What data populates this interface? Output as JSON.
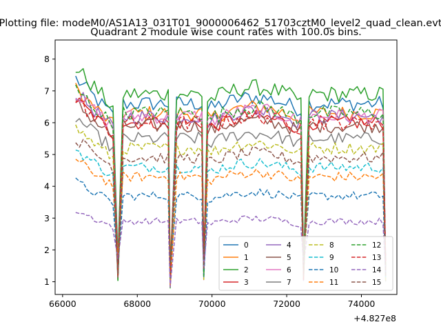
{
  "suptitle": "Plotting file: modeM0/AS1A13_031T01_9000006462_51703cztM0_level2_quad_clean.evt",
  "chart_data": {
    "type": "line",
    "title": "Quadrant 2 module wise count rates with 100.0s bins.",
    "xlabel": "",
    "ylabel": "",
    "x_offset_label": "+4.827e8",
    "xlim": [
      65800,
      74950
    ],
    "ylim": [
      0.6,
      8.6
    ],
    "xticks": [
      66000,
      68000,
      70000,
      72000,
      74000
    ],
    "xtick_labels": [
      "66000",
      "68000",
      "70000",
      "72000",
      "74000"
    ],
    "yticks": [
      1,
      2,
      3,
      4,
      5,
      6,
      7,
      8
    ],
    "ytick_labels": [
      "1",
      "2",
      "3",
      "4",
      "5",
      "6",
      "7",
      "8"
    ],
    "grid": false,
    "legend_placement": "lower-right",
    "segments": [
      {
        "x_start": 66350,
        "x_end": 67350,
        "dip_end": 67480,
        "base": 1.0
      },
      {
        "x_start": 67620,
        "x_end": 68830,
        "dip_end": 68880,
        "base": 0.78
      },
      {
        "x_start": 69050,
        "x_end": 69730,
        "dip_end": 69780,
        "base": 0.98
      },
      {
        "x_start": 69880,
        "x_end": 72380,
        "dip_end": 72450,
        "base": 0.97
      },
      {
        "x_start": 72600,
        "x_end": 74580,
        "dip_end": 74650,
        "base": 0.9
      }
    ],
    "series": [
      {
        "name": "0",
        "color": "#1f77b4",
        "dashed": false,
        "level": 6.6
      },
      {
        "name": "1",
        "color": "#ff7f0e",
        "dashed": false,
        "level": 6.3
      },
      {
        "name": "2",
        "color": "#2ca02c",
        "dashed": false,
        "level": 6.9
      },
      {
        "name": "3",
        "color": "#d62728",
        "dashed": false,
        "level": 6.0
      },
      {
        "name": "4",
        "color": "#9467bd",
        "dashed": false,
        "level": 6.2
      },
      {
        "name": "5",
        "color": "#8c564b",
        "dashed": false,
        "level": 5.9
      },
      {
        "name": "6",
        "color": "#e377c2",
        "dashed": false,
        "level": 6.2
      },
      {
        "name": "7",
        "color": "#7f7f7f",
        "dashed": false,
        "level": 5.5
      },
      {
        "name": "8",
        "color": "#bcbd22",
        "dashed": true,
        "level": 5.2
      },
      {
        "name": "9",
        "color": "#17becf",
        "dashed": true,
        "level": 4.6
      },
      {
        "name": "10",
        "color": "#1f77b4",
        "dashed": true,
        "level": 3.7
      },
      {
        "name": "11",
        "color": "#ff7f0e",
        "dashed": true,
        "level": 4.3
      },
      {
        "name": "12",
        "color": "#2ca02c",
        "dashed": true,
        "level": 6.3
      },
      {
        "name": "13",
        "color": "#d62728",
        "dashed": true,
        "level": 6.0
      },
      {
        "name": "14",
        "color": "#9467bd",
        "dashed": true,
        "level": 2.9
      },
      {
        "name": "15",
        "color": "#8c564b",
        "dashed": true,
        "level": 4.9
      }
    ]
  }
}
